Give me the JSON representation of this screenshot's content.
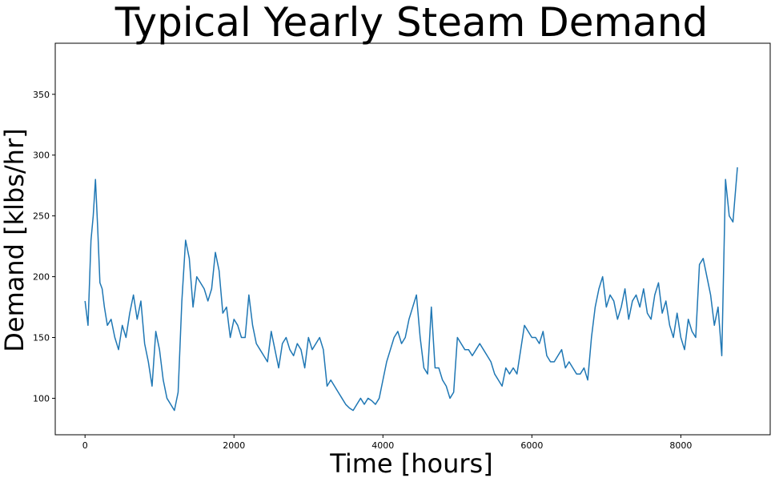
{
  "chart_data": {
    "type": "line",
    "title": "Typical Yearly Steam Demand",
    "xlabel": "Time [hours]",
    "ylabel": "Demand [klbs/hr]",
    "xlim": [
      -400,
      9200
    ],
    "ylim": [
      70,
      392
    ],
    "x_ticks": [
      0,
      2000,
      4000,
      6000,
      8000
    ],
    "y_ticks": [
      100,
      150,
      200,
      250,
      300,
      350
    ],
    "grid": false,
    "legend": "none",
    "line_color": "#1f77b4",
    "series": [
      {
        "x": [
          0,
          40,
          80,
          110,
          140,
          170,
          200,
          230,
          260,
          300,
          350,
          400,
          450,
          500,
          550,
          600,
          650,
          700,
          750,
          800,
          850,
          900,
          950,
          1000,
          1050,
          1100,
          1150,
          1200,
          1250,
          1300,
          1350,
          1400,
          1450,
          1500,
          1550,
          1600,
          1650,
          1700,
          1750,
          1800,
          1850,
          1900,
          1950,
          2000,
          2050,
          2100,
          2150,
          2200,
          2250,
          2300,
          2350,
          2400,
          2450,
          2500,
          2550,
          2600,
          2650,
          2700,
          2750,
          2800,
          2850,
          2900,
          2950,
          3000,
          3050,
          3100,
          3150,
          3200,
          3250,
          3300,
          3350,
          3400,
          3450,
          3500,
          3550,
          3600,
          3650,
          3700,
          3750,
          3800,
          3850,
          3900,
          3950,
          4000,
          4050,
          4100,
          4150,
          4200,
          4250,
          4300,
          4350,
          4400,
          4450,
          4500,
          4550,
          4600,
          4650,
          4700,
          4750,
          4800,
          4850,
          4900,
          4950,
          5000,
          5050,
          5100,
          5150,
          5200,
          5250,
          5300,
          5350,
          5400,
          5450,
          5500,
          5550,
          5600,
          5650,
          5700,
          5750,
          5800,
          5850,
          5900,
          5950,
          6000,
          6050,
          6100,
          6150,
          6200,
          6250,
          6300,
          6350,
          6400,
          6450,
          6500,
          6550,
          6600,
          6650,
          6700,
          6750,
          6800,
          6850,
          6900,
          6950,
          7000,
          7050,
          7100,
          7150,
          7200,
          7250,
          7300,
          7350,
          7400,
          7450,
          7500,
          7550,
          7600,
          7650,
          7700,
          7750,
          7800,
          7850,
          7900,
          7950,
          8000,
          8050,
          8100,
          8150,
          8200,
          8250,
          8300,
          8350,
          8400,
          8450,
          8500,
          8550,
          8600,
          8650,
          8700,
          8760
        ],
        "y": [
          180,
          160,
          230,
          250,
          280,
          240,
          195,
          190,
          175,
          160,
          165,
          150,
          140,
          160,
          150,
          170,
          185,
          165,
          180,
          145,
          130,
          110,
          155,
          140,
          115,
          100,
          95,
          90,
          105,
          180,
          230,
          215,
          175,
          200,
          195,
          190,
          180,
          190,
          220,
          205,
          170,
          175,
          150,
          165,
          160,
          150,
          150,
          185,
          160,
          145,
          140,
          135,
          130,
          155,
          140,
          125,
          145,
          150,
          140,
          135,
          145,
          140,
          125,
          150,
          140,
          145,
          150,
          140,
          110,
          115,
          110,
          105,
          100,
          95,
          92,
          90,
          95,
          100,
          95,
          100,
          98,
          95,
          100,
          115,
          130,
          140,
          150,
          155,
          145,
          150,
          165,
          175,
          185,
          150,
          125,
          120,
          175,
          125,
          125,
          115,
          110,
          100,
          105,
          150,
          145,
          140,
          140,
          135,
          140,
          145,
          140,
          135,
          130,
          120,
          115,
          110,
          125,
          120,
          125,
          120,
          140,
          160,
          155,
          150,
          150,
          145,
          155,
          135,
          130,
          130,
          135,
          140,
          125,
          130,
          125,
          120,
          120,
          125,
          115,
          150,
          175,
          190,
          200,
          175,
          185,
          180,
          165,
          175,
          190,
          165,
          180,
          185,
          175,
          190,
          170,
          165,
          185,
          195,
          170,
          180,
          160,
          150,
          170,
          150,
          140,
          165,
          155,
          150,
          210,
          215,
          200,
          185,
          160,
          175,
          135,
          280,
          250,
          245,
          290
        ]
      }
    ]
  }
}
